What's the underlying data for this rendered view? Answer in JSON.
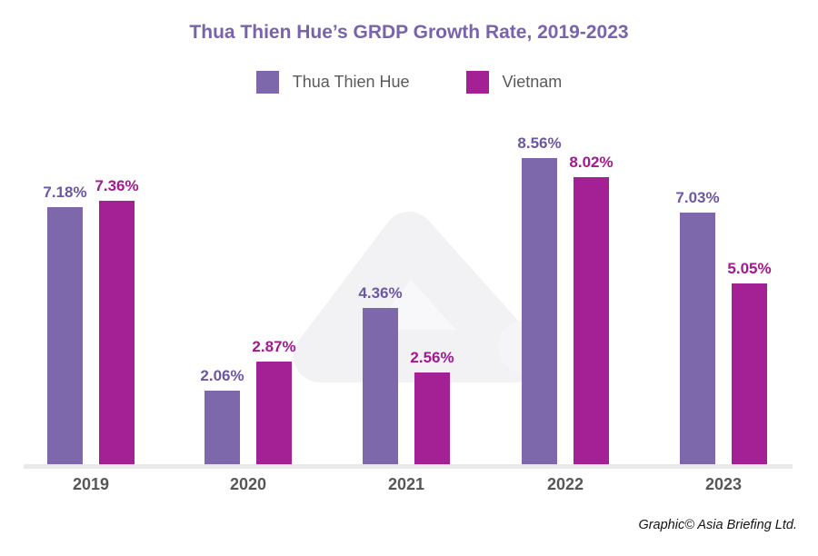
{
  "title": "Thua Thien Hue’s GRDP Growth Rate, 2019-2023",
  "legend": [
    {
      "label": "Thua Thien Hue",
      "color": "#7e68ac"
    },
    {
      "label": "Vietnam",
      "color": "#a42095"
    }
  ],
  "footer_credit": "Graphic© Asia Briefing Ltd.",
  "watermark_icon": "asia-briefing-mountain-mark",
  "colors": {
    "title": "#7a63ae",
    "axis_text": "#57575a",
    "legend_text": "#595a5c",
    "axis_line": "#e9e8ea",
    "watermark_fill": "#f8f8fa",
    "watermark_stroke": "#f2f2f5"
  },
  "chart_data": {
    "type": "bar",
    "title": "Thua Thien Hue’s GRDP Growth Rate, 2019-2023",
    "categories": [
      "2019",
      "2020",
      "2021",
      "2022",
      "2023"
    ],
    "series": [
      {
        "name": "Thua Thien Hue",
        "color": "#7e68ac",
        "label_color": "#6c57a4",
        "values": [
          7.18,
          2.06,
          4.36,
          8.56,
          7.03
        ]
      },
      {
        "name": "Vietnam",
        "color": "#a42095",
        "label_color": "#a2198f",
        "values": [
          7.36,
          2.87,
          2.56,
          8.02,
          5.05
        ]
      }
    ],
    "value_labels": [
      [
        "7.18%",
        "2.06%",
        "4.36%",
        "8.56%",
        "7.03%"
      ],
      [
        "7.36%",
        "2.87%",
        "2.56%",
        "8.02%",
        "5.05%"
      ]
    ],
    "xlabel": "",
    "ylabel": "",
    "ylim": [
      0,
      9
    ],
    "grid": false,
    "y_axis_visible": false,
    "legend_position": "top"
  }
}
